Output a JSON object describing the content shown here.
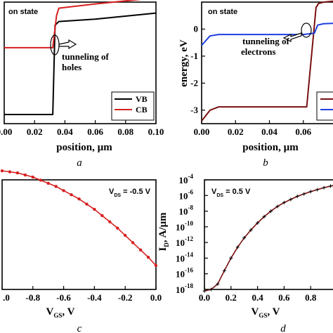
{
  "colors": {
    "black": "#000000",
    "red": "#d62020",
    "blue": "#1f3ee0",
    "darkred": "#7a1010"
  },
  "chart_data": [
    {
      "id": "a",
      "type": "line",
      "panel_label": "a",
      "annotation_state": "on state",
      "annotation_arrow": "tunneling of holes",
      "annotation_lines": [
        "tunneling of",
        "holes"
      ],
      "xlabel": "position, µm",
      "ylabel": "",
      "xlim": [
        0,
        0.1
      ],
      "ylim": [
        -1,
        1
      ],
      "x_ticks": [
        "0.00",
        "0.02",
        "0.04",
        "0.06",
        "0.08",
        "0.10"
      ],
      "legend_position": "bottom-right",
      "series": [
        {
          "name": "VB",
          "color": "#000000",
          "x": [
            0,
            0.032,
            0.0335,
            0.036,
            0.06,
            0.1
          ],
          "y": [
            -0.85,
            -0.85,
            0.62,
            0.68,
            0.72,
            0.82
          ]
        },
        {
          "name": "CB",
          "color": "#d62020",
          "x": [
            0,
            0.018,
            0.03,
            0.032,
            0.0345,
            0.036,
            0.06,
            0.08,
            0.1
          ],
          "y": [
            0.25,
            0.25,
            0.25,
            0.25,
            0.78,
            0.9,
            0.97,
            1.02,
            1.07
          ]
        }
      ]
    },
    {
      "id": "b",
      "type": "line",
      "panel_label": "b",
      "annotation_state": "on state",
      "annotation_lines": [
        "tunneling of",
        "electrons"
      ],
      "xlabel": "position, µm",
      "ylabel": "energy, eV",
      "xlim": [
        0,
        0.08
      ],
      "ylim": [
        -3.5,
        1
      ],
      "x_ticks": [
        "0.00",
        "0.02",
        "0.04",
        "0.06"
      ],
      "y_ticks": [
        "-3",
        "-2",
        "-1",
        "0"
      ],
      "legend_position": "bottom-right",
      "series": [
        {
          "color": "#7a1010",
          "x": [
            0,
            0.005,
            0.01,
            0.06,
            0.062,
            0.0675,
            0.069,
            0.072,
            0.08
          ],
          "y": [
            -3.4,
            -3.0,
            -2.88,
            -2.88,
            -2.88,
            0.8,
            0.95,
            1.0,
            1.05
          ]
        },
        {
          "color": "#1f3ee0",
          "x": [
            0,
            0.005,
            0.01,
            0.06,
            0.0665,
            0.0685,
            0.072,
            0.08
          ],
          "y": [
            -0.6,
            -0.25,
            -0.2,
            -0.2,
            -0.15,
            0.15,
            0.2,
            0.22
          ]
        }
      ]
    },
    {
      "id": "c",
      "type": "line",
      "panel_label": "c",
      "annotation": "V_DS = -0.5 V",
      "annotation_parts": {
        "main": "V",
        "sub": "DS",
        "rest": " = -0.5 V"
      },
      "xlabel": "V_GS, V",
      "xlabel_parts": {
        "main": "V",
        "sub": "GS",
        "rest": ", V"
      },
      "ylabel": "",
      "xlim": [
        -1,
        0
      ],
      "ylim": [
        0,
        1
      ],
      "x_ticks": [
        ".0",
        "-0.8",
        "-0.6",
        "-0.4",
        "-0.2",
        "0.0"
      ],
      "series": [
        {
          "color": "#d62020",
          "marker": "circle",
          "x": [
            -1.0,
            -0.95,
            -0.9,
            -0.85,
            -0.8,
            -0.75,
            -0.7,
            -0.65,
            -0.6,
            -0.55,
            -0.5,
            -0.45,
            -0.4,
            -0.35,
            -0.3,
            -0.25,
            -0.2,
            -0.15,
            -0.1,
            -0.05,
            0.0
          ],
          "y": [
            0.91,
            0.9,
            0.89,
            0.87,
            0.85,
            0.82,
            0.79,
            0.76,
            0.72,
            0.68,
            0.64,
            0.59,
            0.54,
            0.48,
            0.42,
            0.36,
            0.29,
            0.22,
            0.15,
            0.08,
            0.0
          ]
        }
      ]
    },
    {
      "id": "d",
      "type": "line",
      "panel_label": "d",
      "annotation": "V_DS = 0.5 V",
      "annotation_parts": {
        "main": "V",
        "sub": "DS",
        "rest": " = 0.5 V"
      },
      "xlabel": "V_GS, V",
      "xlabel_parts": {
        "main": "V",
        "sub": "GS",
        "rest": ", V"
      },
      "ylabel": "I_D, A/µm",
      "ylabel_parts": {
        "main": "I",
        "sub": "D",
        "rest": ", A/µm"
      },
      "y_scale": "log",
      "xlim": [
        0,
        1.0
      ],
      "ylim": [
        -18,
        -4
      ],
      "x_ticks": [
        "0.0",
        "0.2",
        "0.4",
        "0.6",
        "0.8"
      ],
      "y_ticks": [
        {
          "base": "10",
          "exp": "-4"
        },
        {
          "base": "10",
          "exp": "-6"
        },
        {
          "base": "10",
          "exp": "-8"
        },
        {
          "base": "10",
          "exp": "-10"
        },
        {
          "base": "10",
          "exp": "-12"
        },
        {
          "base": "10",
          "exp": "-14"
        },
        {
          "base": "10",
          "exp": "-16"
        },
        {
          "base": "10",
          "exp": "-18"
        }
      ],
      "series": [
        {
          "color": "#7a1010",
          "marker": "plus",
          "x": [
            0.0,
            0.05,
            0.1,
            0.15,
            0.2,
            0.25,
            0.3,
            0.35,
            0.4,
            0.45,
            0.5,
            0.55,
            0.6,
            0.65,
            0.7,
            0.75,
            0.8,
            0.85,
            0.9,
            0.95,
            1.0
          ],
          "exp": [
            -18.2,
            -18.0,
            -17.3,
            -15.6,
            -14.0,
            -12.6,
            -11.4,
            -10.4,
            -9.5,
            -8.7,
            -8.0,
            -7.4,
            -6.9,
            -6.5,
            -6.1,
            -5.8,
            -5.5,
            -5.25,
            -5.0,
            -4.8,
            -4.6
          ]
        }
      ]
    }
  ]
}
